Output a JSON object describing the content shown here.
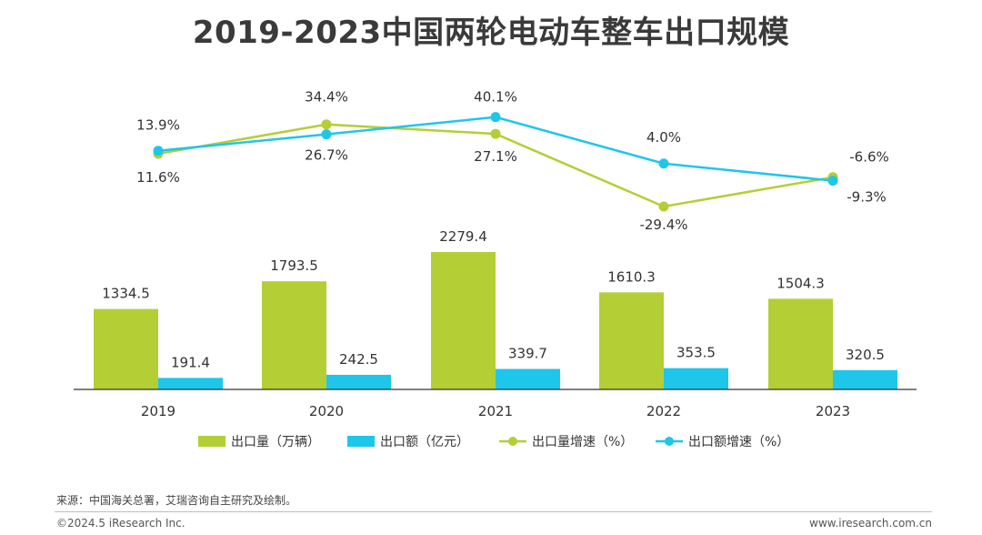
{
  "colors": {
    "green": "#b3cf35",
    "cyan": "#1ec6ea",
    "axis": "#333333",
    "text": "#333333"
  },
  "chart_data": {
    "type": "bar",
    "title": "2019-2023中国两轮电动车整车出口规模",
    "categories": [
      "2019",
      "2020",
      "2021",
      "2022",
      "2023"
    ],
    "series": [
      {
        "name": "出口量（万辆）",
        "type": "bar",
        "color": "#b3cf35",
        "values": [
          1334.5,
          1793.5,
          2279.4,
          1610.3,
          1504.3
        ]
      },
      {
        "name": "出口额（亿元）",
        "type": "bar",
        "color": "#1ec6ea",
        "values": [
          191.4,
          242.5,
          339.7,
          353.5,
          320.5
        ]
      },
      {
        "name": "出口量增速（%）",
        "type": "line",
        "color": "#b3cf35",
        "values": [
          11.6,
          34.4,
          27.1,
          -29.4,
          -6.6
        ]
      },
      {
        "name": "出口额增速（%）",
        "type": "line",
        "color": "#1ec6ea",
        "values": [
          13.9,
          26.7,
          40.1,
          4.0,
          -9.3
        ]
      }
    ],
    "bar_labels": [
      [
        "1334.5",
        "1793.5",
        "2279.4",
        "1610.3",
        "1504.3"
      ],
      [
        "191.4",
        "242.5",
        "339.7",
        "353.5",
        "320.5"
      ]
    ],
    "line_labels": [
      [
        "11.6%",
        "34.4%",
        "27.1%",
        "-29.4%",
        "-6.6%"
      ],
      [
        "13.9%",
        "26.7%",
        "40.1%",
        "4.0%",
        "-9.3%"
      ]
    ],
    "legend_position": "bottom",
    "grid": false
  },
  "footer": {
    "source": "来源：中国海关总署，艾瑞咨询自主研究及绘制。",
    "copyright": "©2024.5 iResearch Inc.",
    "website": "www.iresearch.com.cn"
  }
}
